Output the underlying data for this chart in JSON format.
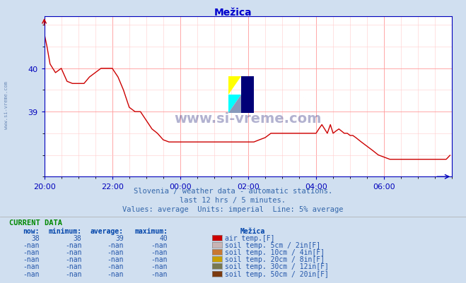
{
  "title": "Mežica",
  "title_color": "#0000cc",
  "bg_color": "#d0dff0",
  "plot_bg_color": "#ffffff",
  "grid_color_major": "#ff9999",
  "grid_color_minor": "#ffcccc",
  "line_color": "#cc0000",
  "axis_color": "#0000bb",
  "watermark_text": "www.si-vreme.com",
  "watermark_color": "#000066",
  "sidebar_text": "www.si-vreme.com",
  "subtitle1": "Slovenia / weather data - automatic stations.",
  "subtitle2": "last 12 hrs / 5 minutes.",
  "subtitle3": "Values: average  Units: imperial  Line: 5% average",
  "subtitle_color": "#3366aa",
  "yticks": [
    39,
    40
  ],
  "xtick_labels": [
    "20:00",
    "22:00",
    "00:00",
    "02:00",
    "04:00",
    "06:00"
  ],
  "xtick_positions": [
    0,
    2,
    4,
    6,
    8,
    10
  ],
  "xlim": [
    0,
    12
  ],
  "ylim": [
    37.5,
    41.2
  ],
  "current_data_header": "CURRENT DATA",
  "col_headers": [
    "now:",
    "minimum:",
    "average:",
    "maximum:",
    "Mežica"
  ],
  "rows": [
    {
      "values": [
        "38",
        "38",
        "39",
        "40"
      ],
      "label": "air temp.[F]",
      "color": "#cc0000"
    },
    {
      "values": [
        "-nan",
        "-nan",
        "-nan",
        "-nan"
      ],
      "label": "soil temp. 5cm / 2in[F]",
      "color": "#c8b4b4"
    },
    {
      "values": [
        "-nan",
        "-nan",
        "-nan",
        "-nan"
      ],
      "label": "soil temp. 10cm / 4in[F]",
      "color": "#c87832"
    },
    {
      "values": [
        "-nan",
        "-nan",
        "-nan",
        "-nan"
      ],
      "label": "soil temp. 20cm / 8in[F]",
      "color": "#c8a000"
    },
    {
      "values": [
        "-nan",
        "-nan",
        "-nan",
        "-nan"
      ],
      "label": "soil temp. 30cm / 12in[F]",
      "color": "#787850"
    },
    {
      "values": [
        "-nan",
        "-nan",
        "-nan",
        "-nan"
      ],
      "label": "soil temp. 50cm / 20in[F]",
      "color": "#7b3a10"
    }
  ],
  "x_data": [
    0.0,
    0.08,
    0.17,
    0.25,
    0.33,
    0.5,
    0.67,
    0.83,
    1.0,
    1.17,
    1.33,
    1.5,
    1.67,
    1.83,
    2.0,
    2.17,
    2.33,
    2.5,
    2.67,
    2.83,
    3.0,
    3.17,
    3.33,
    3.5,
    3.67,
    3.83,
    4.0,
    4.17,
    4.33,
    4.5,
    4.67,
    4.83,
    5.0,
    5.17,
    5.33,
    5.5,
    5.67,
    5.83,
    6.0,
    6.17,
    6.33,
    6.5,
    6.67,
    6.83,
    7.0,
    7.17,
    7.33,
    7.5,
    7.67,
    7.83,
    8.0,
    8.08,
    8.17,
    8.25,
    8.33,
    8.42,
    8.5,
    8.58,
    8.67,
    8.75,
    8.83,
    8.92,
    9.0,
    9.08,
    9.17,
    9.25,
    9.33,
    9.5,
    9.67,
    9.83,
    10.0,
    10.17,
    10.33,
    10.5,
    10.67,
    10.83,
    11.0,
    11.17,
    11.33,
    11.5,
    11.67,
    11.83,
    11.95
  ],
  "y_data": [
    40.8,
    40.5,
    40.1,
    40.0,
    39.9,
    40.0,
    39.7,
    39.65,
    39.65,
    39.65,
    39.8,
    39.9,
    40.0,
    40.0,
    40.0,
    39.8,
    39.5,
    39.1,
    39.0,
    39.0,
    38.8,
    38.6,
    38.5,
    38.35,
    38.3,
    38.3,
    38.3,
    38.3,
    38.3,
    38.3,
    38.3,
    38.3,
    38.3,
    38.3,
    38.3,
    38.3,
    38.3,
    38.3,
    38.3,
    38.3,
    38.35,
    38.4,
    38.5,
    38.5,
    38.5,
    38.5,
    38.5,
    38.5,
    38.5,
    38.5,
    38.5,
    38.6,
    38.7,
    38.6,
    38.5,
    38.7,
    38.5,
    38.55,
    38.6,
    38.55,
    38.5,
    38.5,
    38.45,
    38.45,
    38.4,
    38.35,
    38.3,
    38.2,
    38.1,
    38.0,
    37.95,
    37.9,
    37.9,
    37.9,
    37.9,
    37.9,
    37.9,
    37.9,
    37.9,
    37.9,
    37.9,
    37.9,
    38.0
  ]
}
